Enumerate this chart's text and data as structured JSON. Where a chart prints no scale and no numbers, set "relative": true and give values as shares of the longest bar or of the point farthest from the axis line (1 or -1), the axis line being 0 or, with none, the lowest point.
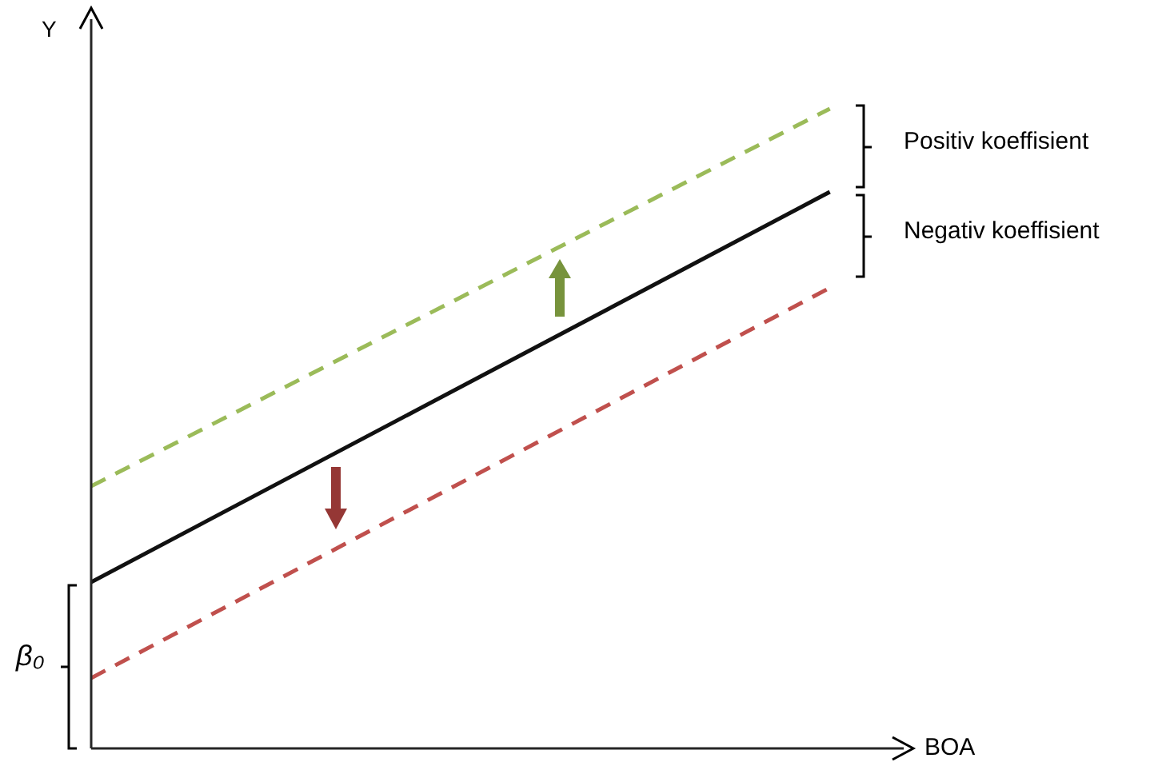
{
  "chart_data": {
    "type": "line",
    "relative": true,
    "xlabel": "BOA",
    "ylabel": "Y",
    "categories": [
      null,
      null
    ],
    "marker": "none",
    "series": [
      {
        "color": "#9bbb59",
        "values": [
          0.41,
          1.0
        ],
        "line_style": "dashed"
      },
      {
        "color": "#111111",
        "values": [
          0.26,
          0.87
        ],
        "line_style": "solid"
      },
      {
        "color": "#c0504d",
        "values": [
          0.11,
          0.72
        ],
        "line_style": "dashed"
      }
    ],
    "annotations": [
      "Positiv koeffisient",
      "Negativ koeffisient",
      "β₀"
    ]
  }
}
